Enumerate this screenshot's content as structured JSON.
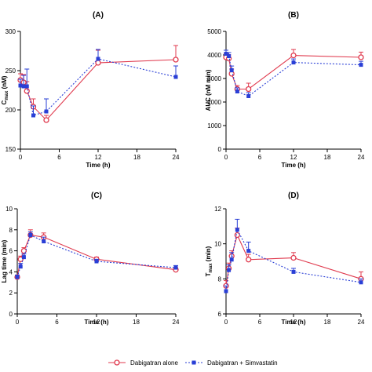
{
  "chart_data": [
    {
      "type": "line",
      "panel": "(A)",
      "xlabel": "Time (h)",
      "ylabel": "Cmax (nM)",
      "xlim": [
        0,
        24
      ],
      "ylim": [
        150,
        300
      ],
      "xticks": [
        0,
        6,
        12,
        18,
        24
      ],
      "yticks": [
        150,
        200,
        250,
        300
      ],
      "series": [
        {
          "name": "Dabigatran alone",
          "color": "#e03a4e",
          "x": [
            0,
            0.5,
            1,
            2,
            4,
            12,
            24
          ],
          "y": [
            238,
            235,
            224,
            204,
            187,
            260,
            264
          ],
          "err": [
            8,
            10,
            12,
            10,
            6,
            16,
            18
          ]
        },
        {
          "name": "Dabigatran + Simvastatin",
          "color": "#2a3fd6",
          "x": [
            0,
            0.5,
            1,
            2,
            4,
            12,
            24
          ],
          "y": [
            231,
            230,
            230,
            193,
            198,
            265,
            242
          ],
          "err": [
            8,
            14,
            22,
            12,
            16,
            12,
            14
          ]
        }
      ]
    },
    {
      "type": "line",
      "panel": "(B)",
      "xlabel": "Time (h)",
      "ylabel": "AUC (nM min)",
      "xlim": [
        0,
        24
      ],
      "ylim": [
        0,
        5000
      ],
      "xticks": [
        0,
        6,
        12,
        18,
        24
      ],
      "yticks": [
        0,
        1000,
        2000,
        3000,
        4000,
        5000
      ],
      "series": [
        {
          "name": "Dabigatran alone",
          "color": "#e03a4e",
          "x": [
            0,
            0.5,
            1,
            2,
            4,
            12,
            24
          ],
          "y": [
            3900,
            3850,
            3200,
            2550,
            2550,
            3980,
            3900
          ],
          "err": [
            150,
            150,
            200,
            150,
            250,
            250,
            220
          ]
        },
        {
          "name": "Dabigatran + Simvastatin",
          "color": "#2a3fd6",
          "x": [
            0,
            0.5,
            1,
            2,
            4,
            12,
            24
          ],
          "y": [
            4050,
            3950,
            3350,
            2450,
            2250,
            3680,
            3580
          ],
          "err": [
            150,
            150,
            180,
            150,
            150,
            150,
            150
          ]
        }
      ]
    },
    {
      "type": "line",
      "panel": "(C)",
      "xlabel": "Time (h)",
      "ylabel": "Lag time (min)",
      "xlim": [
        0,
        24
      ],
      "ylim": [
        0,
        10
      ],
      "xticks": [
        0,
        6,
        12,
        18,
        24
      ],
      "yticks": [
        0,
        2,
        4,
        6,
        8,
        10
      ],
      "series": [
        {
          "name": "Dabigatran alone",
          "color": "#e03a4e",
          "x": [
            0,
            0.5,
            1,
            2,
            4,
            12,
            24
          ],
          "y": [
            3.5,
            5.2,
            6.0,
            7.5,
            7.3,
            5.2,
            4.2
          ],
          "err": [
            0.2,
            0.3,
            0.3,
            0.5,
            0.4,
            0.2,
            0.2
          ]
        },
        {
          "name": "Dabigatran + Simvastatin",
          "color": "#2a3fd6",
          "x": [
            0,
            0.5,
            1,
            2,
            4,
            12,
            24
          ],
          "y": [
            3.5,
            4.5,
            5.4,
            7.5,
            6.9,
            5.0,
            4.4
          ],
          "err": [
            0.2,
            0.3,
            0.3,
            0.3,
            0.4,
            0.2,
            0.2
          ]
        }
      ]
    },
    {
      "type": "line",
      "panel": "(D)",
      "xlabel": "Time (h)",
      "ylabel": "Tmax (min)",
      "xlim": [
        0,
        24
      ],
      "ylim": [
        6,
        12
      ],
      "xticks": [
        0,
        6,
        12,
        18,
        24
      ],
      "yticks": [
        6,
        8,
        10,
        12
      ],
      "series": [
        {
          "name": "Dabigatran alone",
          "color": "#e03a4e",
          "x": [
            0,
            0.5,
            1,
            2,
            4,
            12,
            24
          ],
          "y": [
            7.6,
            8.6,
            9.3,
            10.5,
            9.1,
            9.2,
            8.0
          ],
          "err": [
            0.3,
            0.3,
            0.3,
            0.4,
            0.3,
            0.3,
            0.4
          ]
        },
        {
          "name": "Dabigatran + Simvastatin",
          "color": "#2a3fd6",
          "x": [
            0,
            0.5,
            1,
            2,
            4,
            12,
            24
          ],
          "y": [
            7.3,
            8.5,
            9.1,
            10.8,
            9.6,
            8.4,
            7.8
          ],
          "err": [
            0.3,
            0.3,
            0.4,
            0.6,
            0.5,
            0.2,
            0.2
          ]
        }
      ]
    }
  ],
  "legend": {
    "items": [
      {
        "label": "Dabigatran alone",
        "color": "#e03a4e",
        "marker": "circle-open",
        "line": "solid"
      },
      {
        "label": "Dabigatran + Simvastatin",
        "color": "#2a3fd6",
        "marker": "square-filled",
        "line": "dotted"
      }
    ]
  }
}
